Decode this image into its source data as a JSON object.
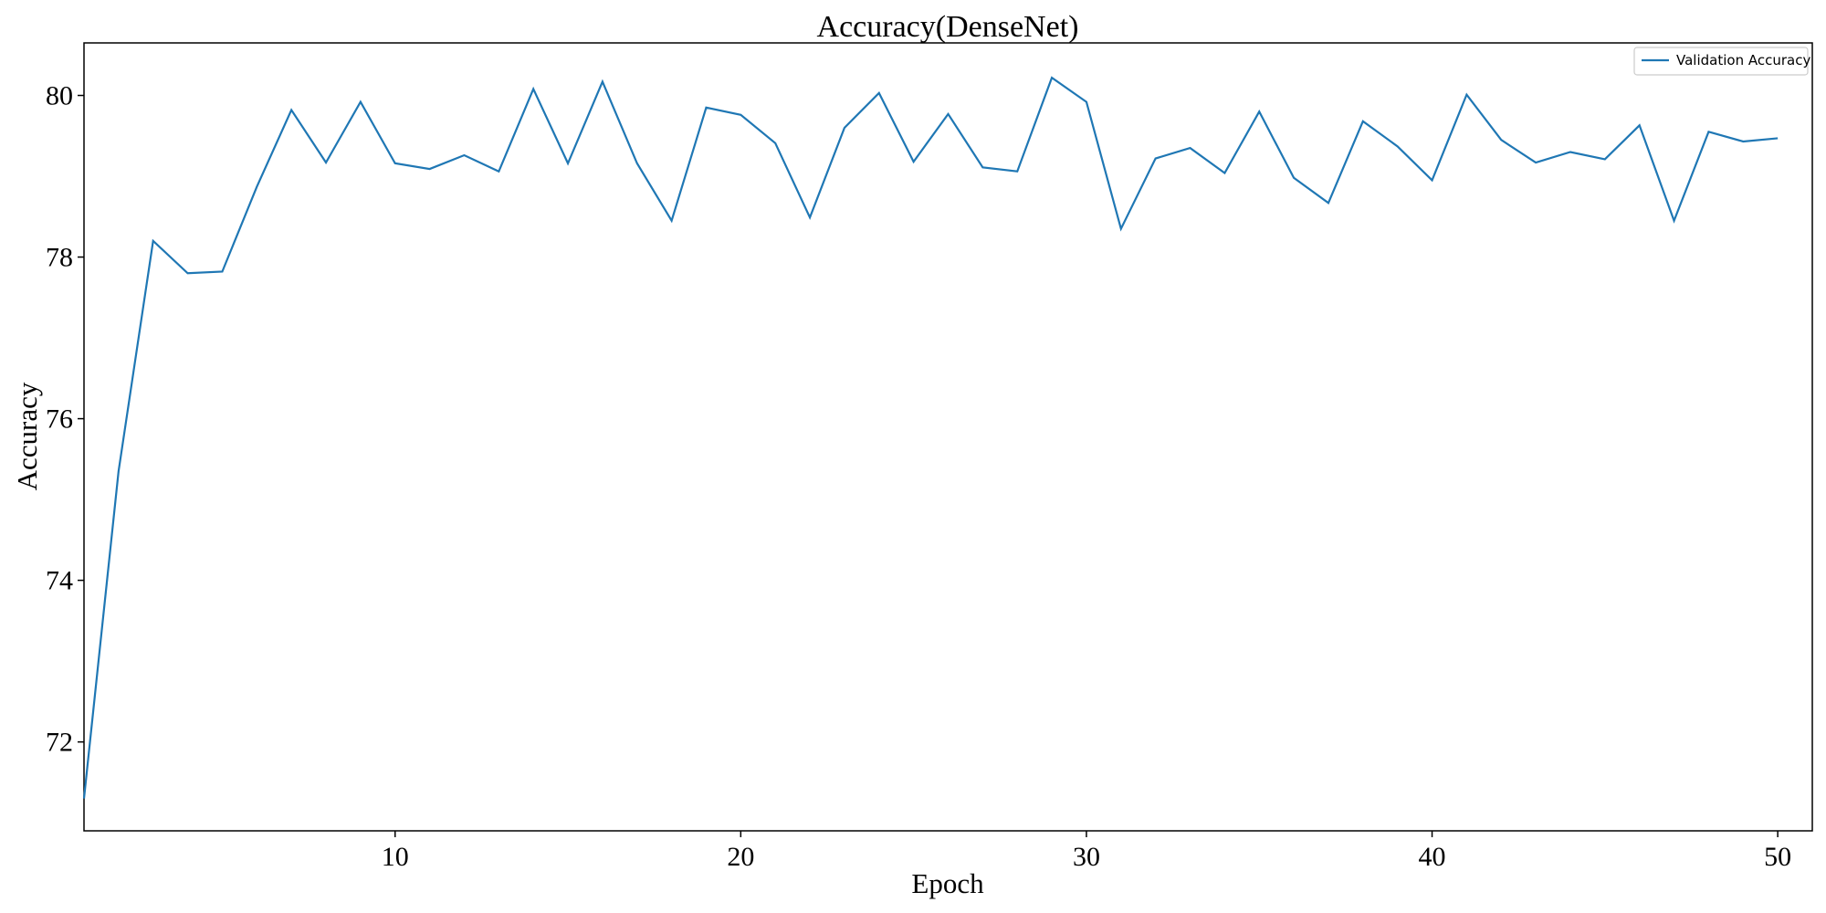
{
  "chart_data": {
    "type": "line",
    "title": "Accuracy(DenseNet)",
    "xlabel": "Epoch",
    "ylabel": "Accuracy",
    "xlim": [
      1,
      51
    ],
    "ylim": [
      70.9,
      80.65
    ],
    "xticks": [
      10,
      20,
      30,
      40,
      50
    ],
    "yticks": [
      72,
      74,
      76,
      78,
      80
    ],
    "grid": false,
    "legend_position": "top-right",
    "colors": {
      "series": "#1f77b4",
      "axes": "#000000"
    },
    "series": [
      {
        "name": "Validation Accuracy",
        "x": [
          1,
          2,
          3,
          4,
          5,
          6,
          7,
          8,
          9,
          10,
          11,
          12,
          13,
          14,
          15,
          16,
          17,
          18,
          19,
          20,
          21,
          22,
          23,
          24,
          25,
          26,
          27,
          28,
          29,
          30,
          31,
          32,
          33,
          34,
          35,
          36,
          37,
          38,
          39,
          40,
          41,
          42,
          43,
          44,
          45,
          46,
          47,
          48,
          49,
          50
        ],
        "values": [
          71.3,
          75.35,
          78.2,
          77.8,
          77.82,
          78.87,
          79.82,
          79.17,
          79.92,
          79.16,
          79.09,
          79.26,
          79.06,
          80.08,
          79.16,
          80.17,
          79.16,
          78.45,
          79.85,
          79.76,
          79.41,
          78.49,
          79.6,
          80.03,
          79.18,
          79.77,
          79.11,
          79.06,
          80.22,
          79.92,
          78.35,
          79.22,
          79.35,
          79.04,
          79.8,
          78.98,
          78.67,
          79.68,
          79.37,
          78.95,
          80.01,
          79.45,
          79.17,
          79.3,
          79.21,
          79.63,
          78.45,
          79.55,
          79.43,
          79.47
        ]
      }
    ]
  }
}
